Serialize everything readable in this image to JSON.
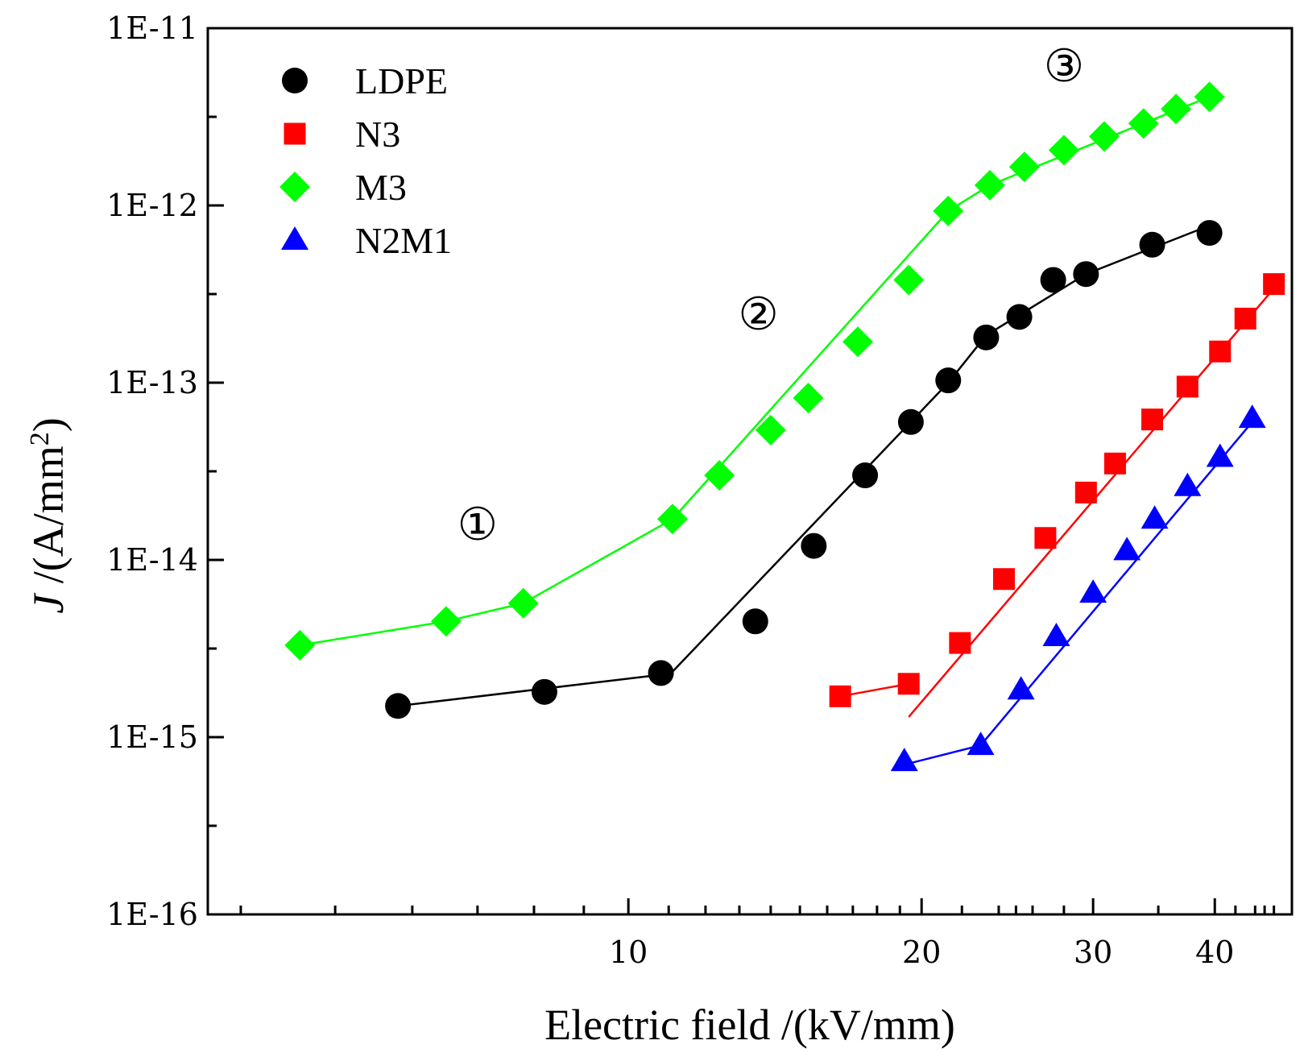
{
  "chart_data": {
    "type": "scatter",
    "xlabel": "Electric field /(kV/mm)",
    "ylabel_italic": "J",
    "ylabel_rest": " /(A/mm",
    "ylabel_sup": "2",
    "ylabel_close": ")",
    "xscale": "log",
    "yscale": "log",
    "xlim": [
      3.7,
      48
    ],
    "ylim": [
      1e-16,
      1e-11
    ],
    "x_ticks": [
      {
        "value": 10,
        "label": "10"
      },
      {
        "value": 20,
        "label": "20"
      },
      {
        "value": 30,
        "label": "30"
      },
      {
        "value": 40,
        "label": "40"
      }
    ],
    "y_ticks": [
      {
        "value": 1e-16,
        "label": "1E-16"
      },
      {
        "value": 1e-15,
        "label": "1E-15"
      },
      {
        "value": 1e-14,
        "label": "1E-14"
      },
      {
        "value": 1e-13,
        "label": "1E-13"
      },
      {
        "value": 1e-12,
        "label": "1E-12"
      },
      {
        "value": 1e-11,
        "label": "1E-11"
      }
    ],
    "legend_position": "top-left",
    "series": [
      {
        "name": "LDPE",
        "marker": "circle",
        "color": "#000000",
        "points": [
          [
            5.8,
            1.5e-15
          ],
          [
            8.2,
            1.8e-15
          ],
          [
            10.8,
            2.3e-15
          ],
          [
            13.5,
            4.5e-15
          ],
          [
            15.5,
            1.2e-14
          ],
          [
            17.5,
            3e-14
          ],
          [
            19.5,
            6e-14
          ],
          [
            21.3,
            1.03e-13
          ],
          [
            23.3,
            1.8e-13
          ],
          [
            25.2,
            2.35e-13
          ],
          [
            27.3,
            3.8e-13
          ],
          [
            29.5,
            4.1e-13
          ],
          [
            34.5,
            6e-13
          ],
          [
            39.5,
            7e-13
          ]
        ],
        "fit_segments": [
          [
            [
              5.8,
              1.5e-15
            ],
            [
              10.8,
              2.25e-15
            ]
          ],
          [
            [
              10.8,
              2e-15
            ],
            [
              21.3,
              1e-13
            ],
            [
              23.3,
              1.85e-13
            ],
            [
              29.5,
              4.1e-13
            ],
            [
              39.5,
              7.7e-13
            ]
          ]
        ]
      },
      {
        "name": "N3",
        "marker": "square",
        "color": "#ff0000",
        "points": [
          [
            16.5,
            1.7e-15
          ],
          [
            19.4,
            2e-15
          ],
          [
            21.9,
            3.4e-15
          ],
          [
            24.3,
            7.8e-15
          ],
          [
            26.8,
            1.33e-14
          ],
          [
            29.5,
            2.4e-14
          ],
          [
            31.6,
            3.5e-14
          ],
          [
            34.5,
            6.2e-14
          ],
          [
            37.5,
            9.5e-14
          ],
          [
            40.5,
            1.5e-13
          ],
          [
            43.0,
            2.3e-13
          ],
          [
            46.0,
            3.6e-13
          ]
        ],
        "fit_segments": [
          [
            [
              16.5,
              1.7e-15
            ],
            [
              19.4,
              2e-15
            ]
          ],
          [
            [
              19.4,
              1.3e-15
            ],
            [
              46.0,
              3.4e-13
            ]
          ]
        ]
      },
      {
        "name": "M3",
        "marker": "diamond",
        "color": "#00ff00",
        "points": [
          [
            4.6,
            3.3e-15
          ],
          [
            6.5,
            4.5e-15
          ],
          [
            7.8,
            5.7e-15
          ],
          [
            11.1,
            1.7e-14
          ],
          [
            12.4,
            3e-14
          ],
          [
            14.0,
            5.4e-14
          ],
          [
            15.3,
            8.2e-14
          ],
          [
            17.2,
            1.7e-13
          ],
          [
            19.4,
            3.8e-13
          ],
          [
            21.3,
            9.3e-13
          ],
          [
            23.5,
            1.3e-12
          ],
          [
            25.5,
            1.65e-12
          ],
          [
            28.0,
            2.05e-12
          ],
          [
            30.8,
            2.45e-12
          ],
          [
            33.8,
            2.9e-12
          ],
          [
            36.5,
            3.5e-12
          ],
          [
            39.5,
            4.1e-12
          ]
        ],
        "fit_segments": [
          [
            [
              4.6,
              3.3e-15
            ],
            [
              6.5,
              4.5e-15
            ],
            [
              7.8,
              5.7e-15
            ],
            [
              11.1,
              1.7e-14
            ],
            [
              21.3,
              9.3e-13
            ],
            [
              23.5,
              1.3e-12
            ],
            [
              39.5,
              4.1e-12
            ]
          ]
        ]
      },
      {
        "name": "N2M1",
        "marker": "triangle",
        "color": "#0000ff",
        "points": [
          [
            19.2,
            7.3e-16
          ],
          [
            23.0,
            9e-16
          ],
          [
            25.3,
            1.85e-15
          ],
          [
            27.5,
            3.7e-15
          ],
          [
            30.0,
            6.5e-15
          ],
          [
            32.5,
            1.13e-14
          ],
          [
            34.7,
            1.7e-14
          ],
          [
            37.5,
            2.6e-14
          ],
          [
            40.5,
            3.8e-14
          ],
          [
            43.7,
            6.3e-14
          ]
        ],
        "fit_segments": [
          [
            [
              19.2,
              7e-16
            ],
            [
              23.0,
              9e-16
            ],
            [
              43.7,
              6e-14
            ]
          ]
        ]
      }
    ],
    "annotations": [
      {
        "text": "①",
        "x": 7.0,
        "y": 1.3e-14
      },
      {
        "text": "②",
        "x": 13.6,
        "y": 2e-13
      },
      {
        "text": "③",
        "x": 28.0,
        "y": 5e-12
      }
    ]
  }
}
